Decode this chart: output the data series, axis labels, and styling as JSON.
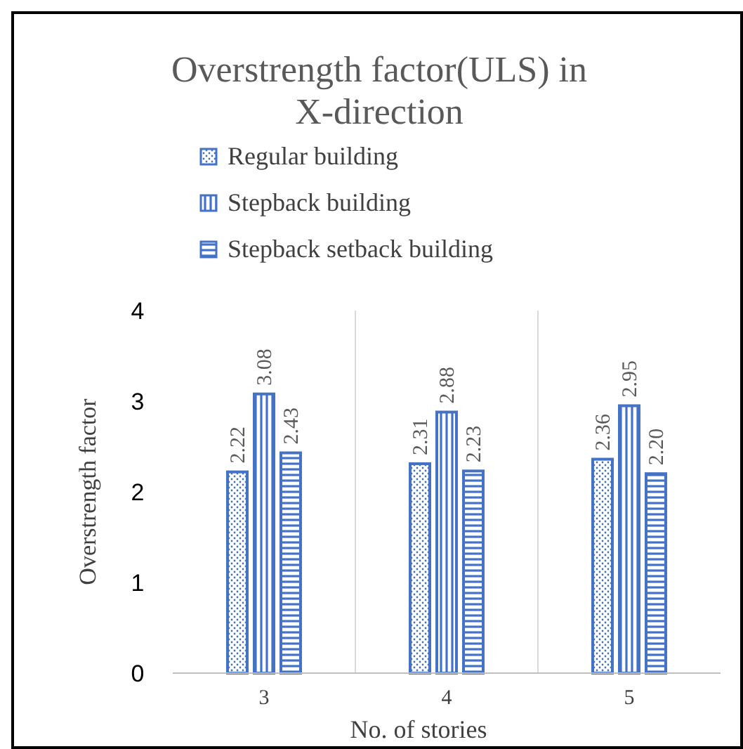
{
  "chart_data": {
    "type": "bar",
    "title": "Overstrength factor(ULS) in X-direction",
    "xlabel": "No. of stories",
    "ylabel": "Overstrength factor",
    "categories": [
      "3",
      "4",
      "5"
    ],
    "series": [
      {
        "name": "Regular building",
        "color": "#4472c4",
        "values": [
          2.22,
          2.31,
          2.36
        ],
        "value_labels": [
          "2.22",
          "2.31",
          "2.36"
        ]
      },
      {
        "name": "Stepback building",
        "color": "#4472c4",
        "values": [
          3.08,
          2.88,
          2.95
        ],
        "value_labels": [
          "3.08",
          "2.88",
          "2.95"
        ]
      },
      {
        "name": "Stepback setback building",
        "color": "#4472c4",
        "values": [
          2.43,
          2.23,
          2.2
        ],
        "value_labels": [
          "2.43",
          "2.23",
          "2.20"
        ]
      }
    ],
    "ylim": [
      0,
      4
    ],
    "yticks": [
      0,
      1,
      2,
      3,
      4
    ],
    "grid": "x",
    "legend": "top"
  }
}
